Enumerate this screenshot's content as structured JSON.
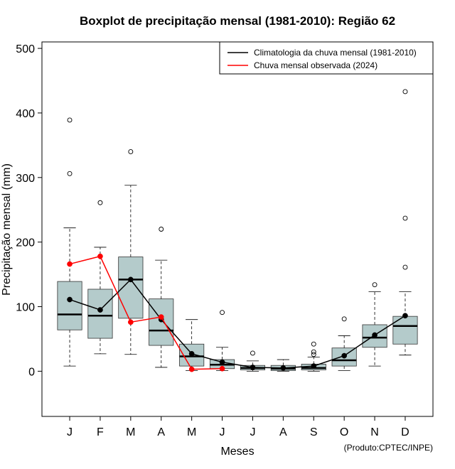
{
  "chart_data": {
    "type": "boxplot",
    "title": "Boxplot de precipitação mensal (1981-2010): Região 62",
    "xlabel": "Meses",
    "ylabel": "Precipitação mensal (mm)",
    "ylim": [
      -70,
      510
    ],
    "yticks": [
      0,
      100,
      200,
      300,
      400,
      500
    ],
    "categories": [
      "J",
      "F",
      "M",
      "A",
      "M",
      "J",
      "J",
      "A",
      "S",
      "O",
      "N",
      "D"
    ],
    "boxes": [
      {
        "month": "J",
        "whisker_low": 8,
        "q1": 64,
        "median": 88,
        "q3": 139,
        "whisker_high": 222,
        "outliers": [
          306,
          389
        ]
      },
      {
        "month": "F",
        "whisker_low": 27,
        "q1": 51,
        "median": 86,
        "q3": 127,
        "whisker_high": 192,
        "outliers": [
          261
        ]
      },
      {
        "month": "M",
        "whisker_low": 26,
        "q1": 82,
        "median": 142,
        "q3": 177,
        "whisker_high": 288,
        "outliers": [
          340
        ]
      },
      {
        "month": "A",
        "whisker_low": 6,
        "q1": 40,
        "median": 63,
        "q3": 112,
        "whisker_high": 172,
        "outliers": [
          220
        ]
      },
      {
        "month": "M",
        "whisker_low": 1,
        "q1": 8,
        "median": 23,
        "q3": 42,
        "whisker_high": 80,
        "outliers": []
      },
      {
        "month": "J",
        "whisker_low": 1,
        "q1": 4,
        "median": 10,
        "q3": 18,
        "whisker_high": 37,
        "outliers": [
          91
        ]
      },
      {
        "month": "J",
        "whisker_low": 0,
        "q1": 2,
        "median": 5,
        "q3": 9,
        "whisker_high": 16,
        "outliers": [
          28
        ]
      },
      {
        "month": "A",
        "whisker_low": 0,
        "q1": 1,
        "median": 4,
        "q3": 9,
        "whisker_high": 18,
        "outliers": []
      },
      {
        "month": "S",
        "whisker_low": 0,
        "q1": 2,
        "median": 5,
        "q3": 11,
        "whisker_high": 22,
        "outliers": [
          26,
          30,
          42
        ]
      },
      {
        "month": "O",
        "whisker_low": 1,
        "q1": 8,
        "median": 17,
        "q3": 36,
        "whisker_high": 55,
        "outliers": [
          81
        ]
      },
      {
        "month": "N",
        "whisker_low": 8,
        "q1": 37,
        "median": 52,
        "q3": 72,
        "whisker_high": 123,
        "outliers": [
          134
        ]
      },
      {
        "month": "D",
        "whisker_low": 25,
        "q1": 42,
        "median": 70,
        "q3": 85,
        "whisker_high": 123,
        "outliers": [
          161,
          237,
          433
        ]
      }
    ],
    "series": [
      {
        "name": "Climatologia da chuva mensal (1981-2010)",
        "color": "#000000",
        "values": [
          111,
          95,
          142,
          80,
          27,
          14,
          6,
          5,
          8,
          24,
          56,
          86
        ]
      },
      {
        "name": "Chuva mensal observada (2024)",
        "color": "#ff0000",
        "values": [
          166,
          178,
          76,
          84,
          3,
          4,
          null,
          null,
          null,
          null,
          null,
          null
        ]
      }
    ],
    "legend_position": "top-right",
    "box_fill": "#b4cbcb"
  },
  "credit": "(Produto:CPTEC/INPE)"
}
